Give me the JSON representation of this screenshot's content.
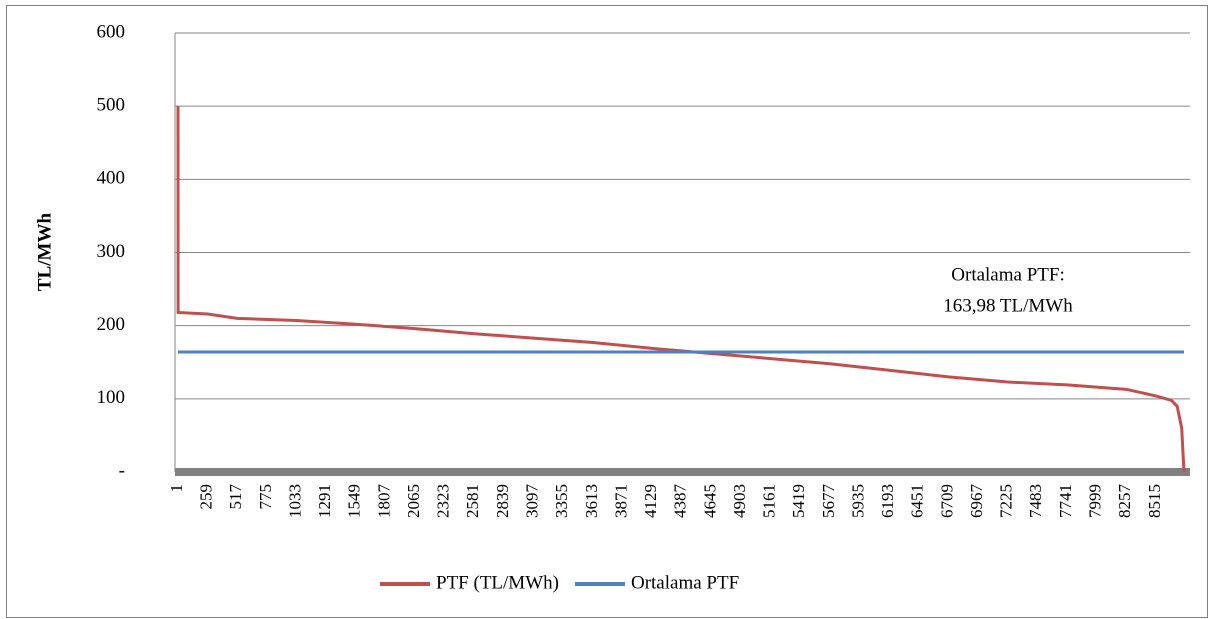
{
  "chart_data": {
    "type": "line",
    "ylabel": "TL/MWh",
    "annotation": [
      "Ortalama PTF:",
      "163,98 TL/MWh"
    ],
    "xlim": [
      1,
      8760
    ],
    "xticks": [
      1,
      259,
      517,
      775,
      1033,
      1291,
      1549,
      1807,
      2065,
      2323,
      2581,
      2839,
      3097,
      3355,
      3613,
      3871,
      4129,
      4387,
      4645,
      4903,
      5161,
      5419,
      5677,
      5935,
      6193,
      6451,
      6709,
      6967,
      7225,
      7483,
      7741,
      7999,
      8257,
      8515
    ],
    "ylim": [
      0,
      600
    ],
    "yticks": [
      {
        "value": 0,
        "label": "-"
      },
      100,
      200,
      300,
      400,
      500,
      600
    ],
    "grid": true,
    "legend": "bottom",
    "series": [
      {
        "name": "PTF (TL/MWh)",
        "color": "#c0504d",
        "x": [
          1,
          2,
          259,
          517,
          1033,
          1549,
          2065,
          2581,
          3097,
          3613,
          4129,
          4645,
          5161,
          5677,
          6193,
          6709,
          7225,
          7741,
          8257,
          8515,
          8650,
          8700,
          8740,
          8760
        ],
        "values": [
          500,
          218,
          216,
          210,
          207,
          202,
          196,
          189,
          183,
          177,
          169,
          162,
          155,
          148,
          139,
          130,
          123,
          119,
          113,
          104,
          98,
          90,
          60,
          0
        ]
      },
      {
        "name": "Ortalama PTF",
        "color": "#4f81bd",
        "x": [
          1,
          8760
        ],
        "values": [
          163.98,
          163.98
        ]
      }
    ]
  }
}
